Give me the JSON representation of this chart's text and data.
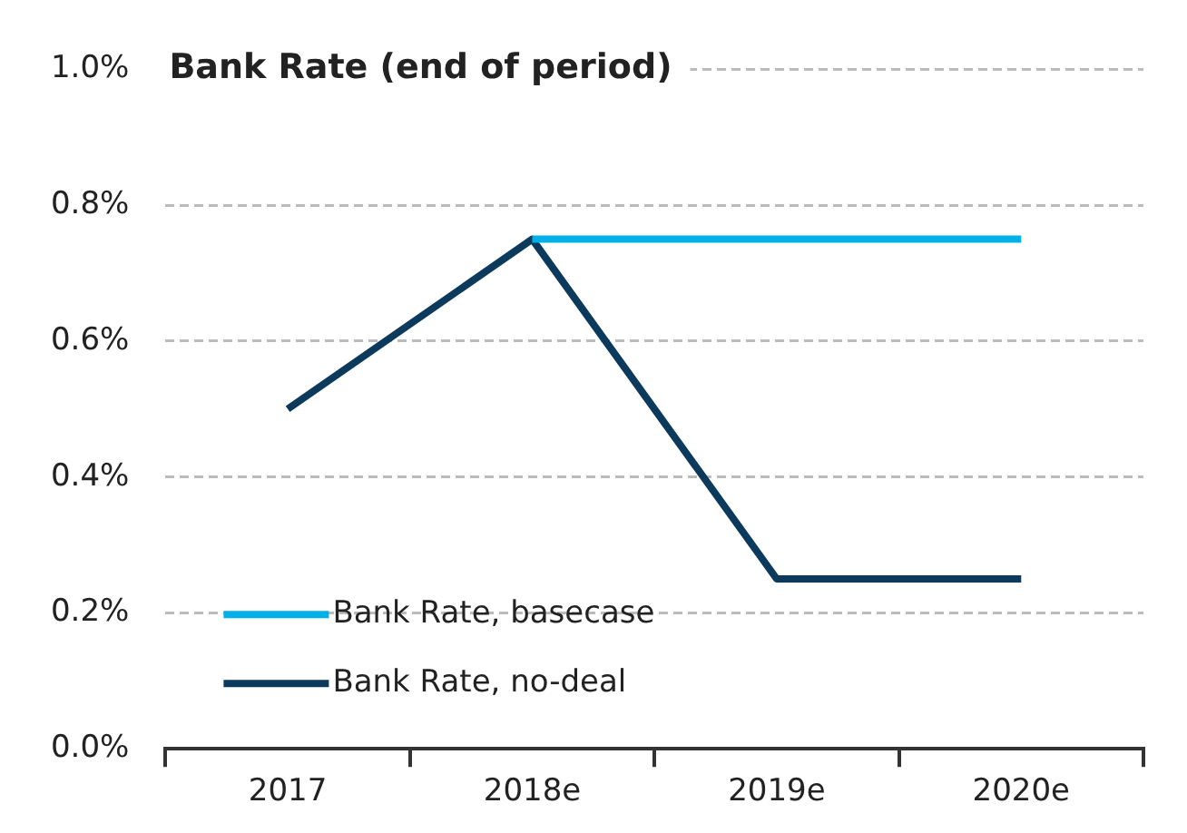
{
  "chart_data": {
    "type": "line",
    "title": "Bank Rate (end of period)",
    "categories": [
      "2017",
      "2018e",
      "2019e",
      "2020e"
    ],
    "series": [
      {
        "name": "Bank Rate, basecase",
        "color": "#00b0e6",
        "values": [
          null,
          0.75,
          0.75,
          0.75
        ]
      },
      {
        "name": "Bank Rate, no-deal",
        "color": "#0b3a5c",
        "values": [
          0.5,
          0.75,
          0.25,
          0.25
        ]
      }
    ],
    "ylim": [
      0,
      1
    ],
    "yticks": [
      {
        "value": 0,
        "label": "0.0%"
      },
      {
        "value": 0.2,
        "label": "0.2%"
      },
      {
        "value": 0.4,
        "label": "0.4%"
      },
      {
        "value": 0.6,
        "label": "0.6%"
      },
      {
        "value": 0.8,
        "label": "0.8%"
      },
      {
        "value": 1,
        "label": "1.0%"
      }
    ],
    "grid": "y",
    "legend": "bottom left",
    "marker": "none",
    "line_style": "solid"
  }
}
